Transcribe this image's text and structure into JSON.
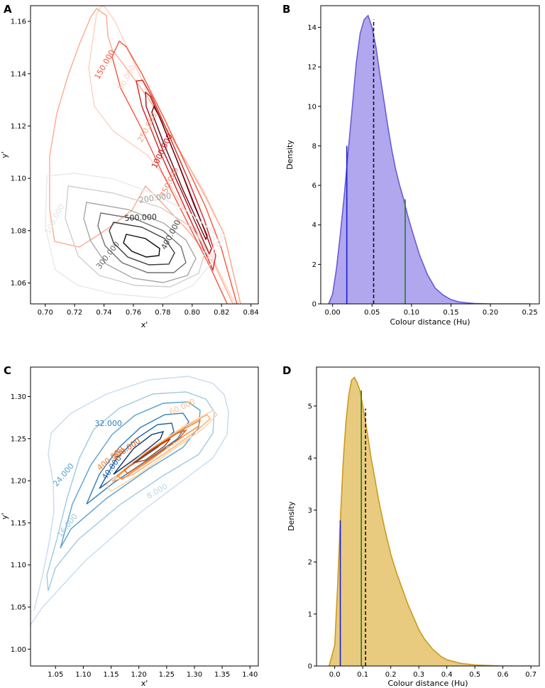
{
  "chart_data": [
    {
      "panel": "A",
      "type": "contour",
      "xlabel": "x'",
      "ylabel": "y'",
      "xlim": [
        0.69,
        0.845
      ],
      "ylim": [
        1.052,
        1.166
      ],
      "xticks": [
        "0.70",
        "0.72",
        "0.74",
        "0.76",
        "0.78",
        "0.80",
        "0.82",
        "0.84"
      ],
      "yticks": [
        "1.06",
        "1.08",
        "1.10",
        "1.12",
        "1.14",
        "1.16"
      ],
      "contour_sets": [
        {
          "name": "grey",
          "colormap": "Greys",
          "colors": [
            "#e9e9e9",
            "#cfcfcf",
            "#a7a7a7",
            "#707070",
            "#3c3c3c",
            "#0a0a0a"
          ],
          "labels": [
            {
              "text": "100.000",
              "x": 0.708,
              "y": 1.084,
              "angle": -62,
              "color": "#e2e2e2"
            },
            {
              "text": "200.000",
              "x": 0.775,
              "y": 1.0915,
              "angle": -8,
              "color": "#9a9a9a"
            },
            {
              "text": "300.000",
              "x": 0.744,
              "y": 1.07,
              "angle": -52,
              "color": "#6b6b6b"
            },
            {
              "text": "400.000",
              "x": 0.787,
              "y": 1.078,
              "angle": -62,
              "color": "#454545"
            },
            {
              "text": "500.000",
              "x": 0.765,
              "y": 1.084,
              "angle": -2,
              "color": "#222222"
            },
            {
              "text": "300.000",
              "x": 0.818,
              "y": 1.073,
              "angle": -62,
              "color": "#e6e6e6"
            }
          ]
        },
        {
          "name": "red",
          "colormap": "Reds",
          "colors": [
            "#fdd1bd",
            "#fcab8f",
            "#f6553d",
            "#d52221",
            "#a50f15",
            "#67000d"
          ],
          "labels": [
            {
              "text": "150.000",
              "x": 0.742,
              "y": 1.143,
              "angle": -60,
              "color": "#f6553d"
            },
            {
              "text": "50.000",
              "x": 0.757,
              "y": 1.138,
              "angle": -60,
              "color": "#fbd0be"
            },
            {
              "text": "250.000",
              "x": 0.771,
              "y": 1.119,
              "angle": -62,
              "color": "#f4a48a"
            },
            {
              "text": "1000.000",
              "x": 0.781,
              "y": 1.11,
              "angle": -64,
              "color": "#c5161c"
            },
            {
              "text": "750.000",
              "x": 0.786,
              "y": 1.098,
              "angle": -64,
              "color": "#f2826b"
            }
          ]
        }
      ]
    },
    {
      "panel": "B",
      "type": "histogram-kde",
      "xlabel": "Colour distance (Hu)",
      "ylabel": "Density",
      "xlim": [
        -0.015,
        0.262
      ],
      "ylim": [
        0,
        15.1
      ],
      "xticks": [
        "0.00",
        "0.05",
        "0.10",
        "0.15",
        "0.20",
        "0.25"
      ],
      "yticks": [
        "0",
        "2",
        "4",
        "6",
        "8",
        "10",
        "12",
        "14"
      ],
      "fill_color": "#b0a7ef",
      "line_color": "#6a5cd6",
      "curve_x": [
        -0.005,
        0.0,
        0.005,
        0.01,
        0.015,
        0.02,
        0.025,
        0.03,
        0.035,
        0.04,
        0.045,
        0.05,
        0.055,
        0.06,
        0.065,
        0.07,
        0.075,
        0.08,
        0.085,
        0.09,
        0.095,
        0.1,
        0.11,
        0.12,
        0.13,
        0.14,
        0.15,
        0.16,
        0.17,
        0.18,
        0.2,
        0.22,
        0.25
      ],
      "curve_y": [
        0.0,
        0.5,
        1.8,
        3.6,
        5.6,
        7.8,
        10.0,
        12.2,
        13.7,
        14.4,
        14.6,
        14.0,
        13.0,
        11.6,
        10.3,
        9.0,
        7.8,
        6.8,
        6.0,
        5.3,
        4.5,
        3.8,
        2.5,
        1.5,
        0.8,
        0.45,
        0.22,
        0.1,
        0.05,
        0.02,
        0.0,
        0.0,
        0.0
      ],
      "vlines": [
        {
          "name": "blue",
          "x": 0.018,
          "y": 8.0,
          "color": "#1d1fd0",
          "style": "solid"
        },
        {
          "name": "median",
          "x": 0.052,
          "y": 14.4,
          "color": "#111111",
          "style": "dashed"
        },
        {
          "name": "green",
          "x": 0.092,
          "y": 5.3,
          "color": "#237c24",
          "style": "solid"
        }
      ]
    },
    {
      "panel": "C",
      "type": "contour",
      "xlabel": "x'",
      "ylabel": "y'",
      "xlim": [
        1.005,
        1.415
      ],
      "ylim": [
        0.98,
        1.335
      ],
      "xticks": [
        "1.05",
        "1.10",
        "1.15",
        "1.20",
        "1.25",
        "1.30",
        "1.35",
        "1.40"
      ],
      "yticks": [
        "1.00",
        "1.05",
        "1.10",
        "1.15",
        "1.20",
        "1.25",
        "1.30"
      ],
      "contour_sets": [
        {
          "name": "blue",
          "colormap": "Blues",
          "colors": [
            "#c6dbef",
            "#9ecae1",
            "#5aa1cf",
            "#2f7dbb",
            "#1a5fa4",
            "#08306b"
          ],
          "labels": [
            {
              "text": "8.000",
              "x": 1.235,
              "y": 1.185,
              "angle": -30,
              "color": "#b9d5ea"
            },
            {
              "text": "16.000",
              "x": 1.075,
              "y": 1.145,
              "angle": -52,
              "color": "#9ecae1"
            },
            {
              "text": "24.000",
              "x": 1.068,
              "y": 1.205,
              "angle": -50,
              "color": "#5aa1cf"
            },
            {
              "text": "32.000",
              "x": 1.145,
              "y": 1.265,
              "angle": 0,
              "color": "#2f7dbb"
            },
            {
              "text": "40.000",
              "x": 1.155,
              "y": 1.214,
              "angle": -55,
              "color": "#1a5fa4"
            }
          ]
        },
        {
          "name": "orange",
          "colormap": "Oranges",
          "colors": [
            "#fdd3a8",
            "#fdaa66",
            "#f6832c",
            "#e05a0e",
            "#a93503"
          ],
          "labels": [
            {
              "text": "60.000",
              "x": 1.28,
              "y": 1.285,
              "angle": -25,
              "color": "#fdbf86"
            },
            {
              "text": "8.000",
              "x": 1.27,
              "y": 1.24,
              "angle": -30,
              "color": "#fdd3a8"
            },
            {
              "text": "300.000",
              "x": 1.18,
              "y": 1.235,
              "angle": -35,
              "color": "#e05a0e"
            },
            {
              "text": "400.000",
              "x": 1.152,
              "y": 1.224,
              "angle": -40,
              "color": "#f07a2a"
            }
          ]
        }
      ]
    },
    {
      "panel": "D",
      "type": "histogram-kde",
      "xlabel": "Colour distance (Hu)",
      "ylabel": "Density",
      "xlim": [
        -0.065,
        0.73
      ],
      "ylim": [
        0,
        5.75
      ],
      "xticks": [
        "0.0",
        "0.1",
        "0.2",
        "0.3",
        "0.4",
        "0.5",
        "0.6",
        "0.7"
      ],
      "yticks": [
        "0",
        "1",
        "2",
        "3",
        "4",
        "5"
      ],
      "fill_color": "#e8cb7e",
      "line_color": "#cc9a1e",
      "curve_x": [
        -0.02,
        0.0,
        0.01,
        0.02,
        0.03,
        0.04,
        0.05,
        0.06,
        0.07,
        0.08,
        0.09,
        0.1,
        0.11,
        0.12,
        0.13,
        0.14,
        0.15,
        0.16,
        0.18,
        0.2,
        0.22,
        0.24,
        0.26,
        0.28,
        0.3,
        0.32,
        0.35,
        0.38,
        0.4,
        0.45,
        0.5,
        0.55,
        0.6,
        0.7
      ],
      "curve_y": [
        0.0,
        0.4,
        1.5,
        2.8,
        3.9,
        4.7,
        5.2,
        5.5,
        5.55,
        5.45,
        5.3,
        5.0,
        4.7,
        4.35,
        4.0,
        3.7,
        3.4,
        3.1,
        2.6,
        2.15,
        1.8,
        1.5,
        1.2,
        0.95,
        0.7,
        0.52,
        0.32,
        0.18,
        0.12,
        0.05,
        0.02,
        0.01,
        0.0,
        0.0
      ],
      "vlines": [
        {
          "name": "blue",
          "x": 0.02,
          "y": 2.8,
          "color": "#1d1fd0",
          "style": "solid"
        },
        {
          "name": "green",
          "x": 0.095,
          "y": 5.3,
          "color": "#237c24",
          "style": "solid"
        },
        {
          "name": "median",
          "x": 0.11,
          "y": 4.95,
          "color": "#111111",
          "style": "dashed"
        }
      ]
    }
  ]
}
